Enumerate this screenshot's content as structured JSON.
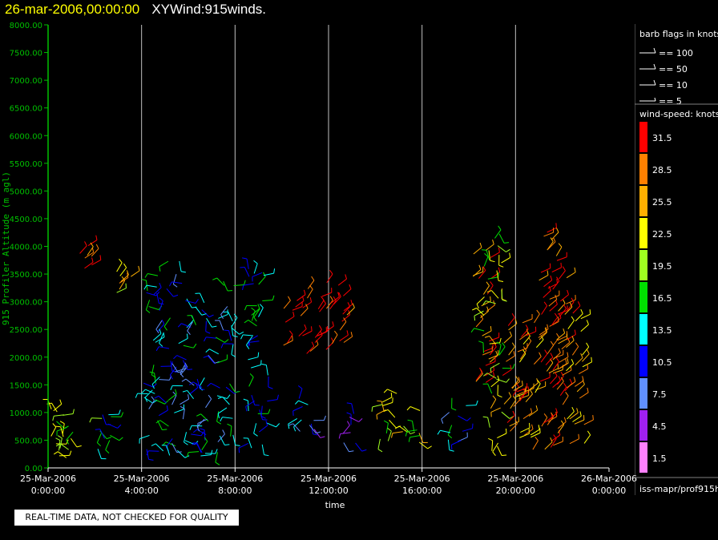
{
  "header": {
    "date_time": "26-mar-2006,00:00:00",
    "product": "XYWind:915winds."
  },
  "chart_data": {
    "type": "scatter",
    "mark": "wind-barbs",
    "ylabel": "915 Profiler Altitude (m agl)",
    "xlabel": "time",
    "ylim": [
      0,
      8000
    ],
    "y_ticks": [
      "0.00",
      "500.00",
      "1000.00",
      "1500.00",
      "2000.00",
      "2500.00",
      "3000.00",
      "3500.00",
      "4000.00",
      "4500.00",
      "5000.00",
      "5500.00",
      "6000.00",
      "6500.00",
      "7000.00",
      "7500.00",
      "8000.00"
    ],
    "x_ticks": [
      {
        "hour": 0,
        "date": "25-Mar-2006",
        "time": "0:00:00"
      },
      {
        "hour": 4,
        "date": "25-Mar-2006",
        "time": "4:00:00"
      },
      {
        "hour": 8,
        "date": "25-Mar-2006",
        "time": "8:00:00"
      },
      {
        "hour": 12,
        "date": "25-Mar-2006",
        "time": "12:00:00"
      },
      {
        "hour": 16,
        "date": "25-Mar-2006",
        "time": "16:00:00"
      },
      {
        "hour": 20,
        "date": "25-Mar-2006",
        "time": "20:00:00"
      },
      {
        "hour": 24,
        "date": "26-Mar-2006",
        "time": "0:00:00"
      }
    ],
    "grid": "vertical lines at each time tick",
    "columns": [
      {
        "hour": 0.2,
        "alt_min": 100,
        "alt_max": 1200,
        "speed": 20,
        "dir": "scattered"
      },
      {
        "hour": 0.7,
        "alt_min": 100,
        "alt_max": 1000,
        "speed": 21,
        "dir": "scattered"
      },
      {
        "hour": 2.5,
        "alt_min": 100,
        "alt_max": 1100,
        "speed": 14,
        "dir": "scattered"
      },
      {
        "hour": 1.7,
        "alt_min": 3600,
        "alt_max": 4100,
        "speed": 30,
        "dir": "NW"
      },
      {
        "hour": 3.3,
        "alt_min": 3100,
        "alt_max": 3600,
        "speed": 24,
        "dir": "NW"
      },
      {
        "hour": 4.5,
        "alt_min": 200,
        "alt_max": 3500,
        "speed": 13,
        "dir": "scattered"
      },
      {
        "hour": 5.5,
        "alt_min": 200,
        "alt_max": 3800,
        "speed": 12,
        "dir": "scattered"
      },
      {
        "hour": 6.5,
        "alt_min": 200,
        "alt_max": 3200,
        "speed": 11,
        "dir": "scattered"
      },
      {
        "hour": 7.5,
        "alt_min": 200,
        "alt_max": 3400,
        "speed": 12,
        "dir": "scattered"
      },
      {
        "hour": 9.0,
        "alt_min": 200,
        "alt_max": 3900,
        "speed": 14,
        "dir": "scattered"
      },
      {
        "hour": 10.5,
        "alt_min": 2100,
        "alt_max": 3100,
        "speed": 32,
        "dir": "NW"
      },
      {
        "hour": 11.5,
        "alt_min": 2000,
        "alt_max": 3400,
        "speed": 32,
        "dir": "NW"
      },
      {
        "hour": 12.5,
        "alt_min": 2200,
        "alt_max": 3400,
        "speed": 31,
        "dir": "NW"
      },
      {
        "hour": 11.0,
        "alt_min": 400,
        "alt_max": 1300,
        "speed": 10,
        "dir": "scattered"
      },
      {
        "hour": 13.0,
        "alt_min": 400,
        "alt_max": 1000,
        "speed": 9,
        "dir": "scattered"
      },
      {
        "hour": 14.5,
        "alt_min": 400,
        "alt_max": 1400,
        "speed": 20,
        "dir": "scattered"
      },
      {
        "hour": 15.5,
        "alt_min": 400,
        "alt_max": 1200,
        "speed": 22,
        "dir": "scattered"
      },
      {
        "hour": 17.5,
        "alt_min": 400,
        "alt_max": 1300,
        "speed": 13,
        "dir": "scattered"
      },
      {
        "hour": 18.6,
        "alt_min": 1500,
        "alt_max": 4000,
        "speed": 29,
        "dir": "NW"
      },
      {
        "hour": 19.0,
        "alt_min": 300,
        "alt_max": 4300,
        "speed": 20,
        "dir": "scattered"
      },
      {
        "hour": 19.8,
        "alt_min": 500,
        "alt_max": 2800,
        "speed": 28,
        "dir": "NW"
      },
      {
        "hour": 20.5,
        "alt_min": 300,
        "alt_max": 2700,
        "speed": 26,
        "dir": "NW"
      },
      {
        "hour": 21.4,
        "alt_min": 300,
        "alt_max": 4400,
        "speed": 30,
        "dir": "NW"
      },
      {
        "hour": 21.8,
        "alt_min": 500,
        "alt_max": 3600,
        "speed": 29,
        "dir": "NW"
      },
      {
        "hour": 22.5,
        "alt_min": 200,
        "alt_max": 2800,
        "speed": 27,
        "dir": "NW"
      }
    ]
  },
  "barb_legend": {
    "title": "barb flags in knots",
    "items": [
      "== 100",
      "== 50",
      "== 10",
      "== 5"
    ]
  },
  "speed_legend": {
    "title": "wind-speed: knots",
    "levels": [
      {
        "label": "31.5",
        "color": "#ff0000"
      },
      {
        "label": "28.5",
        "color": "#ff8000"
      },
      {
        "label": "25.5",
        "color": "#ffb000"
      },
      {
        "label": "22.5",
        "color": "#ffff00"
      },
      {
        "label": "19.5",
        "color": "#a0ff20"
      },
      {
        "label": "16.5",
        "color": "#00e000"
      },
      {
        "label": "13.5",
        "color": "#00ffff"
      },
      {
        "label": "10.5",
        "color": "#0000ff"
      },
      {
        "label": "7.5",
        "color": "#6090ff"
      },
      {
        "label": "4.5",
        "color": "#a020f0"
      },
      {
        "label": "1.5",
        "color": "#ff80ff"
      }
    ]
  },
  "source_label": "iss-mapr/prof915h",
  "quality_note": "REAL-TIME DATA, NOT CHECKED FOR QUALITY",
  "colors": {
    "axis": "#00c000",
    "grid": "#c0c0c0",
    "text": "#ffffff",
    "title_date": "#ffff00"
  }
}
